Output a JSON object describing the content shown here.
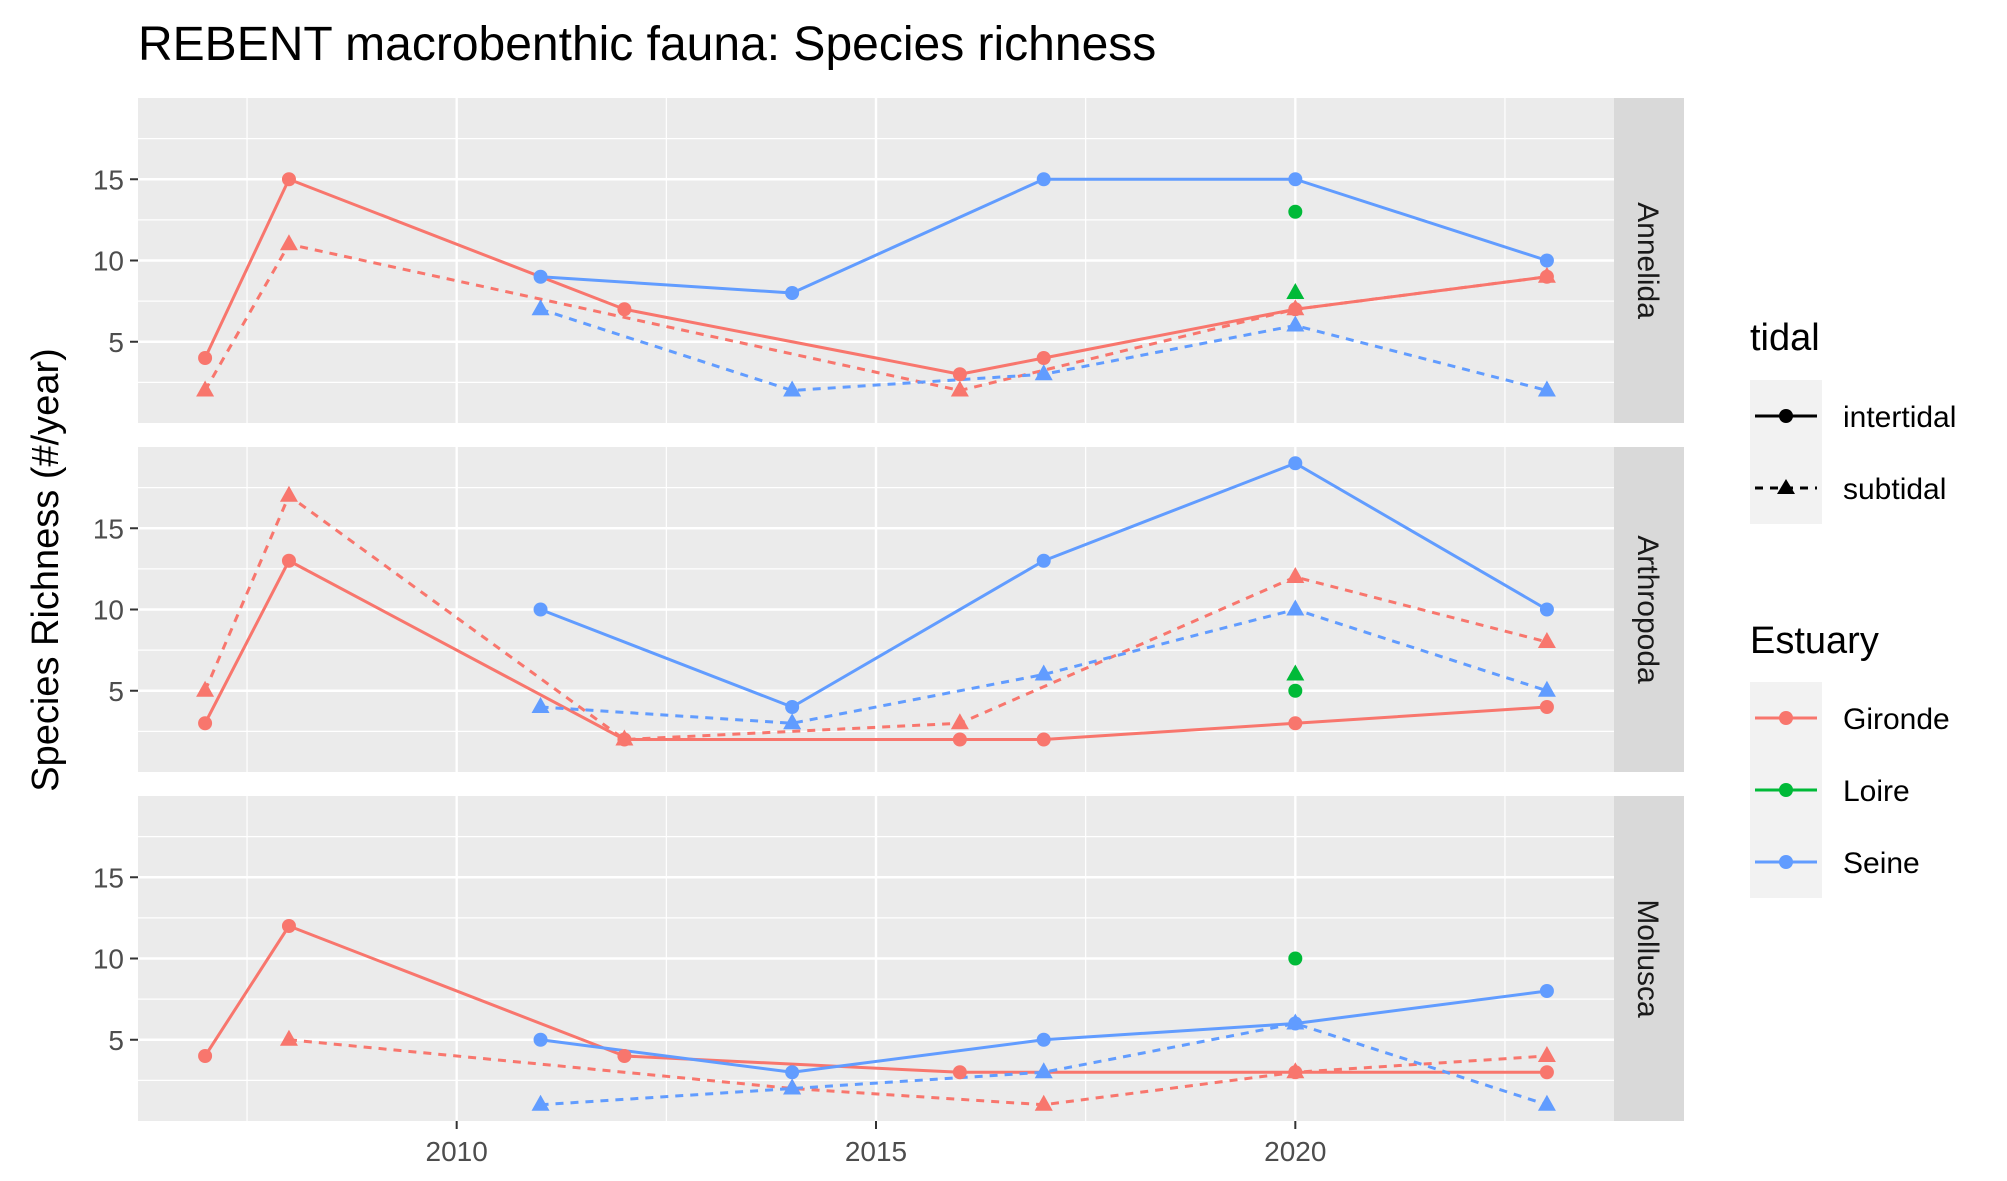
{
  "chart_data": {
    "type": "line",
    "title": "REBENT macrobenthic fauna: Species richness",
    "ylabel": "Species Richness (#/year)",
    "xlabel": "",
    "xlim": [
      2006.2,
      2023.8
    ],
    "ylim": [
      0,
      20
    ],
    "x_ticks": [
      2010,
      2015,
      2020
    ],
    "y_ticks": [
      5,
      10,
      15
    ],
    "grid": true,
    "legend_position": "right",
    "legends": {
      "tidal": {
        "title": "tidal",
        "entries": [
          "intertidal",
          "subtidal"
        ]
      },
      "estuary": {
        "title": "Estuary",
        "entries": [
          "Gironde",
          "Loire",
          "Seine"
        ]
      }
    },
    "colors": {
      "Gironde": "#F8766D",
      "Loire": "#00BA38",
      "Seine": "#619CFF"
    },
    "panels": [
      {
        "name": "Annelida",
        "series": [
          {
            "estuary": "Gironde",
            "tidal": "intertidal",
            "x": [
              2007,
              2008,
              2012,
              2016,
              2017,
              2020,
              2023
            ],
            "y": [
              4,
              15,
              7,
              3,
              4,
              7,
              9
            ]
          },
          {
            "estuary": "Gironde",
            "tidal": "subtidal",
            "x": [
              2007,
              2008,
              2016,
              2020,
              2023
            ],
            "y": [
              2,
              11,
              2,
              7,
              9
            ]
          },
          {
            "estuary": "Loire",
            "tidal": "intertidal",
            "x": [
              2020
            ],
            "y": [
              13
            ]
          },
          {
            "estuary": "Loire",
            "tidal": "subtidal",
            "x": [
              2020
            ],
            "y": [
              8
            ]
          },
          {
            "estuary": "Seine",
            "tidal": "intertidal",
            "x": [
              2011,
              2014,
              2017,
              2020,
              2023
            ],
            "y": [
              9,
              8,
              15,
              15,
              10
            ]
          },
          {
            "estuary": "Seine",
            "tidal": "subtidal",
            "x": [
              2011,
              2014,
              2017,
              2020,
              2023
            ],
            "y": [
              7,
              2,
              3,
              6,
              2
            ]
          }
        ]
      },
      {
        "name": "Arthropoda",
        "series": [
          {
            "estuary": "Gironde",
            "tidal": "intertidal",
            "x": [
              2007,
              2008,
              2012,
              2016,
              2017,
              2020,
              2023
            ],
            "y": [
              3,
              13,
              2,
              2,
              2,
              3,
              4
            ]
          },
          {
            "estuary": "Gironde",
            "tidal": "subtidal",
            "x": [
              2007,
              2008,
              2012,
              2016,
              2020,
              2023
            ],
            "y": [
              5,
              17,
              2,
              3,
              12,
              8
            ]
          },
          {
            "estuary": "Loire",
            "tidal": "intertidal",
            "x": [
              2020
            ],
            "y": [
              5
            ]
          },
          {
            "estuary": "Loire",
            "tidal": "subtidal",
            "x": [
              2020
            ],
            "y": [
              6
            ]
          },
          {
            "estuary": "Seine",
            "tidal": "intertidal",
            "x": [
              2011,
              2014,
              2017,
              2020,
              2023
            ],
            "y": [
              10,
              4,
              13,
              19,
              10
            ]
          },
          {
            "estuary": "Seine",
            "tidal": "subtidal",
            "x": [
              2011,
              2014,
              2017,
              2020,
              2023
            ],
            "y": [
              4,
              3,
              6,
              10,
              5
            ]
          }
        ]
      },
      {
        "name": "Mollusca",
        "series": [
          {
            "estuary": "Gironde",
            "tidal": "intertidal",
            "x": [
              2007,
              2008,
              2012,
              2016,
              2020,
              2023
            ],
            "y": [
              4,
              12,
              4,
              3,
              3,
              3
            ]
          },
          {
            "estuary": "Gironde",
            "tidal": "subtidal",
            "x": [
              2008,
              2014,
              2017,
              2020,
              2023
            ],
            "y": [
              5,
              2,
              1,
              3,
              4
            ]
          },
          {
            "estuary": "Loire",
            "tidal": "intertidal",
            "x": [
              2020
            ],
            "y": [
              10
            ]
          },
          {
            "estuary": "Seine",
            "tidal": "intertidal",
            "x": [
              2011,
              2014,
              2017,
              2020,
              2023
            ],
            "y": [
              5,
              3,
              5,
              6,
              8
            ]
          },
          {
            "estuary": "Seine",
            "tidal": "subtidal",
            "x": [
              2011,
              2014,
              2017,
              2020,
              2023
            ],
            "y": [
              1,
              2,
              3,
              6,
              1
            ]
          }
        ]
      }
    ]
  }
}
